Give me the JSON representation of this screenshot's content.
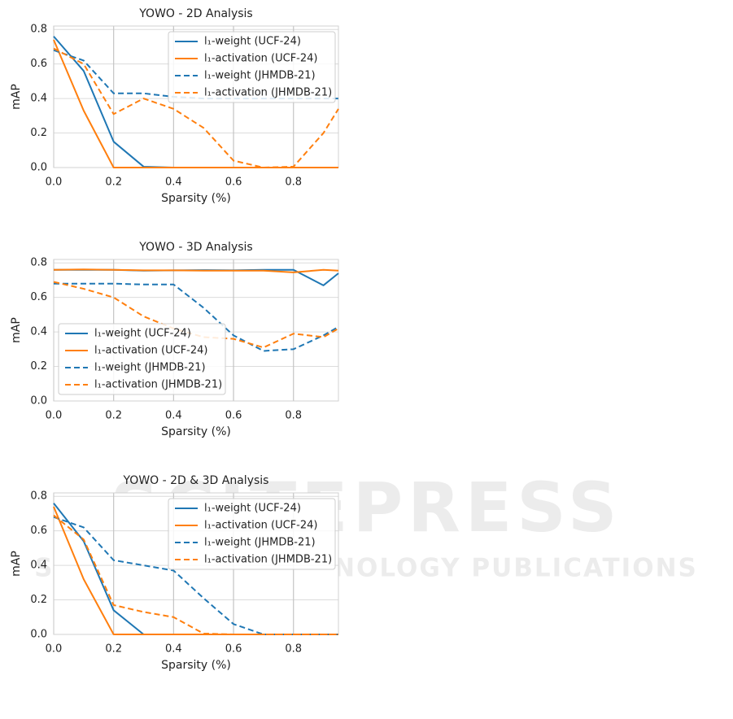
{
  "watermark": {
    "title": "SCITEPRESS",
    "subtitle": "SCIENCE AND TECHNOLOGY PUBLICATIONS"
  },
  "chart_data": [
    {
      "type": "line",
      "title": "YOWO - 2D Analysis",
      "x_label": "Sparsity (%)",
      "y_label": "mAP",
      "x": [
        0,
        0.1,
        0.2,
        0.3,
        0.4,
        0.5,
        0.6,
        0.7,
        0.8,
        0.9,
        0.95
      ],
      "xlim": [
        0,
        0.95
      ],
      "ylim": [
        0,
        0.82
      ],
      "xticks": [
        {
          "value": 0,
          "label": "0.0"
        },
        0.2,
        0.4,
        0.6,
        0.8
      ],
      "yticks": [
        {
          "value": 0,
          "label": "0.0"
        },
        0.2,
        0.4,
        0.6,
        0.8
      ],
      "grid": true,
      "legend": "upper right",
      "series": [
        {
          "name": "l₁-weight (UCF-24)",
          "color": "#1f77b4",
          "linestyle": "solid",
          "values": [
            0.76,
            0.56,
            0.15,
            0.005,
            0,
            0,
            0,
            0,
            0,
            0,
            0
          ]
        },
        {
          "name": "l₁-activation (UCF-24)",
          "color": "#ff7f0e",
          "linestyle": "solid",
          "values": [
            0.74,
            0.33,
            0,
            0,
            0,
            0,
            0,
            0,
            0,
            0,
            0
          ]
        },
        {
          "name": "l₁-weight (JHMDB-21)",
          "color": "#1f77b4",
          "linestyle": "dashed",
          "values": [
            0.68,
            0.62,
            0.43,
            0.43,
            0.41,
            0.4,
            0.4,
            0.4,
            0.4,
            0.4,
            0.4
          ]
        },
        {
          "name": "l₁-activation (JHMDB-21)",
          "color": "#ff7f0e",
          "linestyle": "dashed",
          "values": [
            0.69,
            0.6,
            0.31,
            0.4,
            0.34,
            0.23,
            0.04,
            0,
            0.005,
            0.2,
            0.34
          ]
        }
      ]
    },
    {
      "type": "line",
      "title": "YOWO - 3D Analysis",
      "x_label": "Sparsity (%)",
      "y_label": "mAP",
      "x": [
        0,
        0.1,
        0.2,
        0.3,
        0.4,
        0.5,
        0.6,
        0.7,
        0.8,
        0.9,
        0.95
      ],
      "xlim": [
        0,
        0.95
      ],
      "ylim": [
        0,
        0.82
      ],
      "xticks": [
        {
          "value": 0,
          "label": "0.0"
        },
        0.2,
        0.4,
        0.6,
        0.8
      ],
      "yticks": [
        {
          "value": 0,
          "label": "0.0"
        },
        0.2,
        0.4,
        0.6,
        0.8
      ],
      "grid": true,
      "legend": "lower left",
      "series": [
        {
          "name": "l₁-weight (UCF-24)",
          "color": "#1f77b4",
          "linestyle": "solid",
          "values": [
            0.76,
            0.76,
            0.76,
            0.755,
            0.757,
            0.758,
            0.757,
            0.76,
            0.76,
            0.67,
            0.74
          ]
        },
        {
          "name": "l₁-activation (UCF-24)",
          "color": "#ff7f0e",
          "linestyle": "solid",
          "values": [
            0.76,
            0.762,
            0.76,
            0.757,
            0.757,
            0.755,
            0.755,
            0.755,
            0.745,
            0.76,
            0.755
          ]
        },
        {
          "name": "l₁-weight (JHMDB-21)",
          "color": "#1f77b4",
          "linestyle": "dashed",
          "values": [
            0.68,
            0.68,
            0.68,
            0.675,
            0.675,
            0.54,
            0.38,
            0.29,
            0.3,
            0.38,
            0.43
          ]
        },
        {
          "name": "l₁-activation (JHMDB-21)",
          "color": "#ff7f0e",
          "linestyle": "dashed",
          "values": [
            0.69,
            0.65,
            0.6,
            0.49,
            0.42,
            0.37,
            0.36,
            0.31,
            0.39,
            0.37,
            0.42
          ]
        }
      ]
    },
    {
      "type": "line",
      "title": "YOWO - 2D & 3D Analysis",
      "x_label": "Sparsity (%)",
      "y_label": "mAP",
      "x": [
        0,
        0.1,
        0.2,
        0.3,
        0.4,
        0.5,
        0.6,
        0.7,
        0.8,
        0.9,
        0.95
      ],
      "xlim": [
        0,
        0.95
      ],
      "ylim": [
        0,
        0.82
      ],
      "xticks": [
        {
          "value": 0,
          "label": "0.0"
        },
        0.2,
        0.4,
        0.6,
        0.8
      ],
      "yticks": [
        {
          "value": 0,
          "label": "0.0"
        },
        0.2,
        0.4,
        0.6,
        0.8
      ],
      "grid": true,
      "legend": "upper right",
      "series": [
        {
          "name": "l₁-weight (UCF-24)",
          "color": "#1f77b4",
          "linestyle": "solid",
          "values": [
            0.76,
            0.54,
            0.14,
            0,
            0,
            0,
            0,
            0,
            0,
            0,
            0
          ]
        },
        {
          "name": "l₁-activation (UCF-24)",
          "color": "#ff7f0e",
          "linestyle": "solid",
          "values": [
            0.74,
            0.32,
            0,
            0,
            0,
            0,
            0,
            0,
            0,
            0,
            0
          ]
        },
        {
          "name": "l₁-weight (JHMDB-21)",
          "color": "#1f77b4",
          "linestyle": "dashed",
          "values": [
            0.68,
            0.62,
            0.43,
            0.4,
            0.37,
            0.21,
            0.06,
            0,
            0,
            0,
            0
          ]
        },
        {
          "name": "l₁-activation (JHMDB-21)",
          "color": "#ff7f0e",
          "linestyle": "dashed",
          "values": [
            0.69,
            0.55,
            0.17,
            0.13,
            0.1,
            0.005,
            0,
            0,
            0,
            0,
            0
          ]
        }
      ]
    }
  ]
}
